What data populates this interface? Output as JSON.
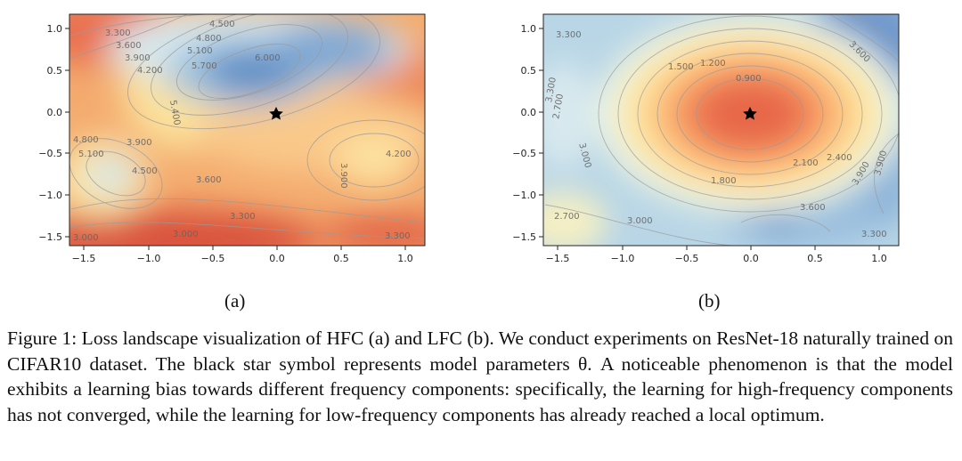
{
  "figure": {
    "panels": [
      {
        "id": "a",
        "label": "(a)",
        "x_ticks": [
          "−1.5",
          "−1.0",
          "−0.5",
          "0.0",
          "0.5",
          "1.0"
        ],
        "y_ticks": [
          "1.0",
          "0.5",
          "0.0",
          "−0.5",
          "−1.0",
          "−1.5"
        ],
        "contour_labels": [
          "3.300",
          "3.600",
          "3.900",
          "4.200",
          "4.500",
          "4.800",
          "5.100",
          "5.700",
          "6.000",
          "5.400",
          "4.800",
          "5.100",
          "3.900",
          "4.500",
          "3.600",
          "3.900",
          "4.200",
          "3.300",
          "3.000",
          "3.000",
          "3.300"
        ]
      },
      {
        "id": "b",
        "label": "(b)",
        "x_ticks": [
          "−1.5",
          "−1.0",
          "−0.5",
          "0.0",
          "0.5",
          "1.0"
        ],
        "y_ticks": [
          "1.0",
          "0.5",
          "0.0",
          "−0.5",
          "−1.0",
          "−1.5"
        ],
        "contour_labels": [
          "3.300",
          "1.500",
          "1.200",
          "0.900",
          "3.300",
          "2.700",
          "3.000",
          "2.100",
          "2.400",
          "1.800",
          "2.700",
          "3.000",
          "3.600",
          "3.600",
          "3.900",
          "3.900",
          "3.300"
        ]
      }
    ],
    "caption": "Figure 1: Loss landscape visualization of HFC (a) and LFC (b). We conduct experiments on ResNet-18 naturally trained on CIFAR10 dataset. The black star symbol represents model parameters θ. A noticeable phenomenon is that the model exhibits a learning bias towards different frequency components: specifically, the learning for high-frequency components has not converged, while the learning for low-frequency components has already reached a local optimum."
  }
}
